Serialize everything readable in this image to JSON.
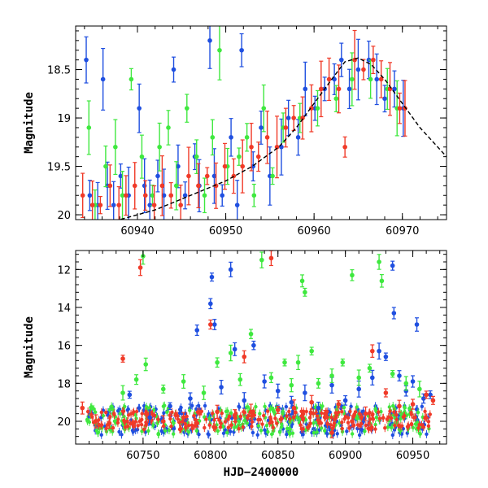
{
  "chart_data": [
    {
      "type": "scatter",
      "panel": "top",
      "xlabel": "",
      "ylabel": "Magnitude",
      "xlim": [
        60933,
        60975
      ],
      "ylim": [
        20.05,
        18.05
      ],
      "y_inverted": true,
      "x_ticks": [
        60940,
        60950,
        60960,
        60970
      ],
      "x_tick_labels": [
        "60940",
        "60950",
        "60960",
        "60970"
      ],
      "y_ticks": [
        18.5,
        19,
        19.5,
        20
      ],
      "y_tick_labels": [
        "18.5",
        "19",
        "19.5",
        "20"
      ],
      "grid": false,
      "colors": {
        "blue": "#1f4fe0",
        "green": "#3fe83f",
        "red": "#f03a28",
        "model": "#000000"
      },
      "series": [
        {
          "color": "blue",
          "points": [
            [
              60934.2,
              18.4
            ],
            [
              60934.6,
              19.8
            ],
            [
              60935.5,
              19.9
            ],
            [
              60936.1,
              18.6
            ],
            [
              60936.6,
              19.7
            ],
            [
              60937.3,
              19.9
            ],
            [
              60938.1,
              19.6
            ],
            [
              60939.0,
              19.8
            ],
            [
              60940.2,
              18.9
            ],
            [
              60940.8,
              19.7
            ],
            [
              60941.4,
              19.9
            ],
            [
              60942.3,
              19.6
            ],
            [
              60943.0,
              19.8
            ],
            [
              60944.1,
              18.5
            ],
            [
              60944.6,
              19.5
            ],
            [
              60945.4,
              19.8
            ],
            [
              60946.5,
              19.4
            ],
            [
              60947.0,
              19.7
            ],
            [
              60948.2,
              18.2
            ],
            [
              60948.7,
              19.6
            ],
            [
              60949.6,
              19.8
            ],
            [
              60950.6,
              19.2
            ],
            [
              60951.3,
              19.9
            ],
            [
              60951.8,
              18.3
            ],
            [
              60953.1,
              19.5
            ],
            [
              60954.0,
              19.1
            ],
            [
              60955.0,
              19.6
            ],
            [
              60956.3,
              19.3
            ],
            [
              60957.1,
              19.0
            ],
            [
              60958.2,
              19.2
            ],
            [
              60959.0,
              18.7
            ],
            [
              60960.1,
              18.9
            ],
            [
              60961.2,
              18.7
            ],
            [
              60962.3,
              18.6
            ],
            [
              60963.1,
              18.4
            ],
            [
              60964.0,
              18.7
            ],
            [
              60965.0,
              18.5
            ],
            [
              60966.2,
              18.4
            ],
            [
              60967.1,
              18.6
            ],
            [
              60968.0,
              18.8
            ],
            [
              60969.1,
              18.7
            ],
            [
              60970.1,
              18.9
            ]
          ]
        },
        {
          "color": "green",
          "points": [
            [
              60934.5,
              19.1
            ],
            [
              60935.2,
              19.9
            ],
            [
              60936.4,
              19.5
            ],
            [
              60937.5,
              19.3
            ],
            [
              60938.3,
              19.8
            ],
            [
              60939.3,
              18.6
            ],
            [
              60940.5,
              19.4
            ],
            [
              60941.7,
              19.8
            ],
            [
              60942.5,
              19.3
            ],
            [
              60943.5,
              19.1
            ],
            [
              60944.4,
              19.7
            ],
            [
              60945.6,
              18.9
            ],
            [
              60946.7,
              19.4
            ],
            [
              60947.6,
              19.8
            ],
            [
              60948.5,
              19.2
            ],
            [
              60949.3,
              18.3
            ],
            [
              60950.2,
              19.5
            ],
            [
              60951.5,
              19.4
            ],
            [
              60952.4,
              19.2
            ],
            [
              60953.2,
              19.8
            ],
            [
              60954.3,
              18.9
            ],
            [
              60955.3,
              19.6
            ],
            [
              60956.5,
              19.1
            ],
            [
              60958.4,
              19.0
            ],
            [
              60960.4,
              18.9
            ],
            [
              60962.5,
              18.8
            ],
            [
              60964.3,
              18.6
            ],
            [
              60966.4,
              18.6
            ],
            [
              60968.3,
              18.7
            ],
            [
              60969.4,
              18.9
            ]
          ]
        },
        {
          "color": "red",
          "points": [
            [
              60933.8,
              19.8
            ],
            [
              60934.9,
              19.9
            ],
            [
              60935.8,
              19.9
            ],
            [
              60936.9,
              19.7
            ],
            [
              60937.9,
              19.9
            ],
            [
              60938.7,
              19.8
            ],
            [
              60939.7,
              19.7
            ],
            [
              60940.9,
              19.8
            ],
            [
              60941.9,
              19.9
            ],
            [
              60942.8,
              19.7
            ],
            [
              60943.8,
              19.8
            ],
            [
              60944.9,
              19.9
            ],
            [
              60945.8,
              19.6
            ],
            [
              60946.9,
              19.7
            ],
            [
              60947.9,
              19.6
            ],
            [
              60948.9,
              19.7
            ],
            [
              60949.9,
              19.5
            ],
            [
              60950.9,
              19.6
            ],
            [
              60951.9,
              19.5
            ],
            [
              60952.9,
              19.3
            ],
            [
              60953.7,
              19.4
            ],
            [
              60954.7,
              19.2
            ],
            [
              60955.8,
              19.3
            ],
            [
              60956.8,
              19.1
            ],
            [
              60957.7,
              19.0
            ],
            [
              60958.7,
              19.0
            ],
            [
              60959.7,
              18.9
            ],
            [
              60960.8,
              18.7
            ],
            [
              60961.7,
              18.6
            ],
            [
              60962.8,
              18.7
            ],
            [
              60963.5,
              19.3
            ],
            [
              60964.6,
              18.4
            ],
            [
              60965.6,
              18.5
            ],
            [
              60966.7,
              18.4
            ],
            [
              60967.6,
              18.6
            ],
            [
              60968.6,
              18.7
            ],
            [
              60969.7,
              18.9
            ],
            [
              60970.3,
              18.9
            ]
          ]
        }
      ],
      "model_curve": [
        [
          60933,
          20.1
        ],
        [
          60938,
          20.05
        ],
        [
          60942,
          19.95
        ],
        [
          60946,
          19.8
        ],
        [
          60950,
          19.65
        ],
        [
          60953,
          19.5
        ],
        [
          60956,
          19.3
        ],
        [
          60958,
          19.1
        ],
        [
          60960,
          18.85
        ],
        [
          60962,
          18.6
        ],
        [
          60963.5,
          18.42
        ],
        [
          60965,
          18.38
        ],
        [
          60966.5,
          18.45
        ],
        [
          60968,
          18.6
        ],
        [
          60970,
          18.85
        ],
        [
          60972,
          19.1
        ],
        [
          60975,
          19.4
        ]
      ]
    },
    {
      "type": "scatter",
      "panel": "bottom",
      "xlabel": "HJD−2400000",
      "ylabel": "Magnitude",
      "xlim": [
        60700,
        60975
      ],
      "ylim": [
        21.2,
        11.0
      ],
      "y_inverted": true,
      "x_ticks": [
        60750,
        60800,
        60850,
        60900,
        60950
      ],
      "x_tick_labels": [
        "60750",
        "60800",
        "60850",
        "60900",
        "60950"
      ],
      "y_ticks": [
        12,
        14,
        16,
        18,
        20
      ],
      "y_tick_labels": [
        "12",
        "14",
        "16",
        "18",
        "20"
      ],
      "grid": false,
      "series": [
        {
          "color": "blue",
          "points": [
            [
              60740,
              18.6
            ],
            [
              60755,
              19.8
            ],
            [
              60770,
              19.2
            ],
            [
              60785,
              18.8
            ],
            [
              60790,
              15.2
            ],
            [
              60800,
              13.8
            ],
            [
              60801,
              12.4
            ],
            [
              60803,
              14.9
            ],
            [
              60808,
              18.2
            ],
            [
              60815,
              12.0
            ],
            [
              60818,
              16.2
            ],
            [
              60825,
              18.9
            ],
            [
              60832,
              16.0
            ],
            [
              60840,
              17.9
            ],
            [
              60850,
              18.4
            ],
            [
              60860,
              19.0
            ],
            [
              60870,
              18.5
            ],
            [
              60880,
              19.3
            ],
            [
              60890,
              18.1
            ],
            [
              60900,
              18.9
            ],
            [
              60910,
              18.3
            ],
            [
              60920,
              17.7
            ],
            [
              60925,
              16.3
            ],
            [
              60930,
              16.6
            ],
            [
              60935,
              11.8
            ],
            [
              60936,
              14.3
            ],
            [
              60940,
              17.6
            ],
            [
              60945,
              18.4
            ],
            [
              60950,
              17.9
            ],
            [
              60953,
              14.9
            ],
            [
              60958,
              18.8
            ],
            [
              60963,
              18.6
            ]
          ]
        },
        {
          "color": "green",
          "points": [
            [
              60735,
              18.5
            ],
            [
              60745,
              17.8
            ],
            [
              60750,
              11.3
            ],
            [
              60752,
              17.0
            ],
            [
              60765,
              18.3
            ],
            [
              60780,
              17.9
            ],
            [
              60795,
              18.5
            ],
            [
              60805,
              16.9
            ],
            [
              60815,
              16.4
            ],
            [
              60822,
              17.8
            ],
            [
              60830,
              15.4
            ],
            [
              60838,
              11.5
            ],
            [
              60845,
              17.7
            ],
            [
              60855,
              16.9
            ],
            [
              60860,
              18.1
            ],
            [
              60865,
              16.9
            ],
            [
              60868,
              12.6
            ],
            [
              60870,
              13.2
            ],
            [
              60875,
              16.3
            ],
            [
              60880,
              18.0
            ],
            [
              60890,
              17.6
            ],
            [
              60898,
              16.9
            ],
            [
              60905,
              12.3
            ],
            [
              60910,
              17.7
            ],
            [
              60918,
              17.2
            ],
            [
              60925,
              11.6
            ],
            [
              60927,
              12.6
            ],
            [
              60935,
              17.5
            ],
            [
              60945,
              18.0
            ],
            [
              60955,
              18.3
            ]
          ]
        },
        {
          "color": "red",
          "points": [
            [
              60705,
              19.3
            ],
            [
              60715,
              20.0
            ],
            [
              60725,
              20.1
            ],
            [
              60735,
              16.7
            ],
            [
              60748,
              11.9
            ],
            [
              60765,
              20.0
            ],
            [
              60780,
              19.8
            ],
            [
              60790,
              20.1
            ],
            [
              60800,
              14.9
            ],
            [
              60805,
              19.5
            ],
            [
              60818,
              19.7
            ],
            [
              60825,
              16.6
            ],
            [
              60830,
              19.5
            ],
            [
              60845,
              11.4
            ],
            [
              60850,
              19.4
            ],
            [
              60862,
              19.3
            ],
            [
              60875,
              19.0
            ],
            [
              60885,
              19.6
            ],
            [
              60890,
              20.6
            ],
            [
              60895,
              19.1
            ],
            [
              60905,
              20.0
            ],
            [
              60915,
              19.6
            ],
            [
              60920,
              16.3
            ],
            [
              60930,
              18.5
            ],
            [
              60940,
              19.2
            ],
            [
              60950,
              19.1
            ],
            [
              60960,
              18.6
            ],
            [
              60965,
              18.9
            ]
          ]
        }
      ],
      "band": {
        "center": 19.95,
        "spread": 0.6
      }
    }
  ]
}
